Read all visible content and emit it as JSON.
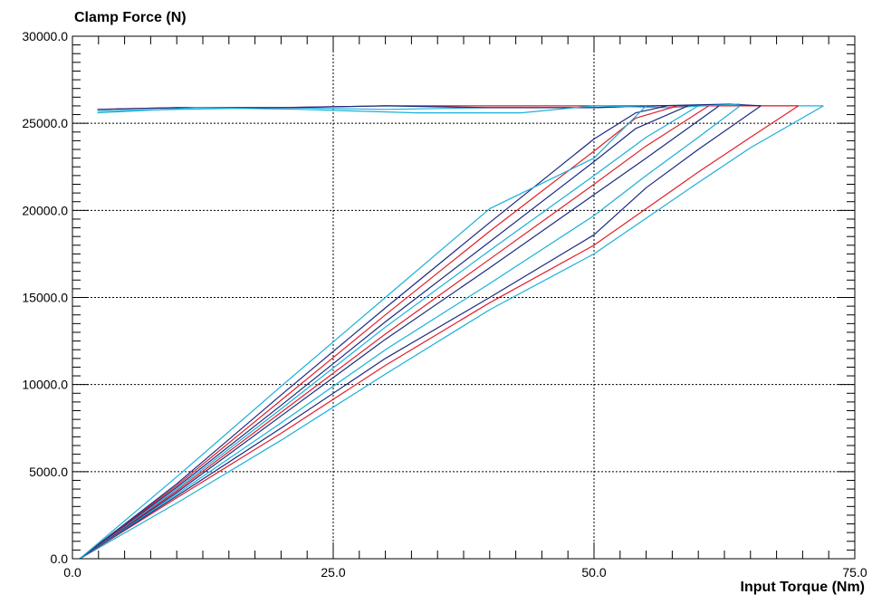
{
  "chart_data": {
    "type": "line",
    "title": "",
    "xlabel": "Input Torque (Nm)",
    "ylabel": "Clamp Force (N)",
    "xlim": [
      0,
      75
    ],
    "ylim": [
      0,
      30000
    ],
    "x_ticks": [
      0,
      25,
      50,
      75
    ],
    "x_tick_labels": [
      "0.0",
      "25.0",
      "50.0",
      "75.0"
    ],
    "y_ticks": [
      0,
      5000,
      10000,
      15000,
      20000,
      25000,
      30000
    ],
    "y_tick_labels": [
      "0.0",
      "5000.0",
      "10000.0",
      "15000.0",
      "20000.0",
      "25000.0",
      "30000.0"
    ],
    "grid": true,
    "legend": "none",
    "colors": {
      "cyan": "#1ab0d8",
      "red": "#e0202a",
      "navy": "#1c2a80"
    },
    "series": [
      {
        "color": "cyan",
        "x": [
          2.4,
          10,
          20,
          30,
          40,
          50,
          56,
          63,
          72
        ],
        "y": [
          25700,
          25800,
          25900,
          25800,
          25900,
          25900,
          26000,
          26000,
          26000
        ]
      },
      {
        "color": "red",
        "x": [
          2.4,
          10,
          20,
          30,
          40,
          50,
          55,
          63,
          69.6
        ],
        "y": [
          25800,
          25900,
          25900,
          26000,
          26000,
          26000,
          26000,
          26000,
          26000
        ]
      },
      {
        "color": "navy",
        "x": [
          2.4,
          10,
          20,
          30,
          40,
          50,
          56,
          63,
          66
        ],
        "y": [
          25800,
          25900,
          25900,
          26000,
          25900,
          25900,
          26000,
          26100,
          26000
        ]
      },
      {
        "color": "cyan",
        "x": [
          2.4,
          12,
          22,
          33,
          43,
          50,
          57,
          64
        ],
        "y": [
          25600,
          25900,
          25800,
          25600,
          25600,
          26000,
          25900,
          26100
        ]
      },
      {
        "color": "cyan",
        "x": [
          0.7,
          10,
          20,
          30,
          40,
          50,
          60,
          65,
          72
        ],
        "y": [
          0,
          3200,
          6800,
          10600,
          14300,
          17500,
          21600,
          23600,
          26000
        ]
      },
      {
        "color": "red",
        "x": [
          0.7,
          10,
          20,
          30,
          40,
          50,
          60,
          65,
          69.6
        ],
        "y": [
          0,
          3500,
          7200,
          11100,
          14700,
          18000,
          22200,
          24200,
          26000
        ]
      },
      {
        "color": "navy",
        "x": [
          0.7,
          10,
          20,
          30,
          40,
          50,
          55,
          60,
          66
        ],
        "y": [
          0,
          3600,
          7500,
          11500,
          15000,
          18600,
          21300,
          23500,
          26000
        ]
      },
      {
        "color": "cyan",
        "x": [
          0.7,
          10,
          20,
          30,
          40,
          50,
          55,
          60,
          64
        ],
        "y": [
          0,
          3700,
          7800,
          12000,
          15800,
          19700,
          22000,
          24200,
          26000
        ]
      },
      {
        "color": "navy",
        "x": [
          0.7,
          10,
          20,
          30,
          40,
          50,
          55,
          62
        ],
        "y": [
          0,
          3800,
          8200,
          12600,
          16700,
          20900,
          23000,
          26000
        ]
      },
      {
        "color": "red",
        "x": [
          0.7,
          10,
          20,
          30,
          40,
          50,
          55,
          61
        ],
        "y": [
          0,
          3900,
          8400,
          12900,
          17200,
          21500,
          23700,
          26000
        ]
      },
      {
        "color": "cyan",
        "x": [
          0.7,
          10,
          20,
          30,
          40,
          50,
          55,
          60
        ],
        "y": [
          0,
          4000,
          8600,
          13300,
          17700,
          22000,
          24200,
          26000
        ]
      },
      {
        "color": "navy",
        "x": [
          0.7,
          10,
          20,
          30,
          40,
          50,
          54,
          59
        ],
        "y": [
          0,
          4100,
          8800,
          13600,
          18200,
          22800,
          24700,
          26000
        ]
      },
      {
        "color": "red",
        "x": [
          0.7,
          10,
          20,
          30,
          40,
          50,
          54,
          58
        ],
        "y": [
          0,
          4200,
          9100,
          14000,
          18800,
          23400,
          25300,
          26000
        ]
      },
      {
        "color": "navy",
        "x": [
          0.7,
          10,
          20,
          30,
          40,
          50,
          54,
          57
        ],
        "y": [
          0,
          4300,
          9400,
          14400,
          19300,
          24100,
          25600,
          26000
        ]
      },
      {
        "color": "cyan",
        "x": [
          0.7,
          10,
          20,
          30,
          40,
          50,
          55
        ],
        "y": [
          0,
          4700,
          9900,
          15000,
          20100,
          23000,
          26000
        ]
      }
    ]
  }
}
